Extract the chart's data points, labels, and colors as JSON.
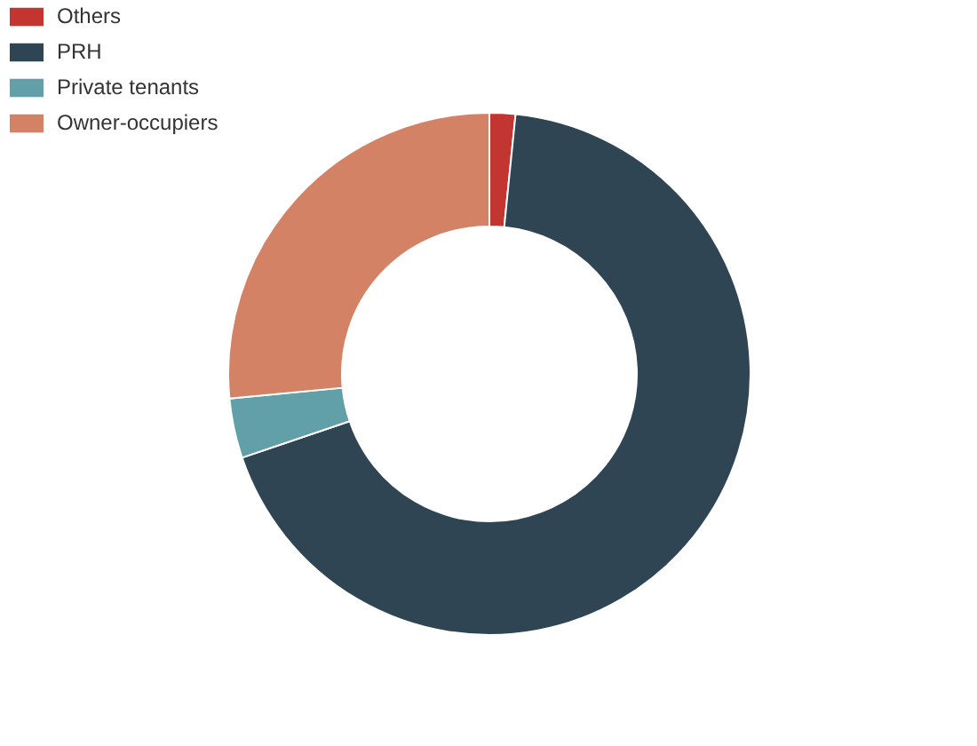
{
  "chart_data": {
    "type": "donut",
    "categories": [
      "Others",
      "PRH",
      "Private tenants",
      "Owner-occupiers"
    ],
    "values": [
      1.6,
      68.2,
      3.7,
      26.5
    ],
    "colors": [
      "#c23531",
      "#2f4554",
      "#61a0a8",
      "#d48265"
    ],
    "legend": "top left"
  }
}
